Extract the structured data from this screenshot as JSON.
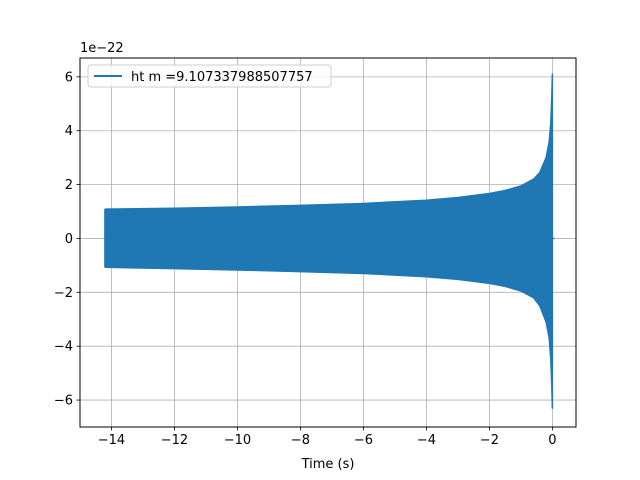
{
  "chart_data": {
    "type": "line",
    "title": "",
    "xlabel": "Time (s)",
    "ylabel": "",
    "y_offset_label": "1e−22",
    "xlim": [
      -15.0,
      0.75
    ],
    "ylim": [
      -7.0,
      6.7
    ],
    "xticks": [
      -14,
      -12,
      -10,
      -8,
      -6,
      -4,
      -2,
      0
    ],
    "xtick_labels": [
      "−14",
      "−12",
      "−10",
      "−8",
      "−6",
      "−4",
      "−2",
      "0"
    ],
    "yticks": [
      -6,
      -4,
      -2,
      0,
      2,
      4,
      6
    ],
    "ytick_labels": [
      "−6",
      "−4",
      "−2",
      "0",
      "2",
      "4",
      "6"
    ],
    "grid": true,
    "legend_position": "top-left",
    "series": [
      {
        "name": "ht m =9.107337988507757",
        "color": "#1f77b4",
        "envelope": {
          "t": [
            -14.2,
            -12,
            -10,
            -8,
            -6,
            -4,
            -3,
            -2,
            -1.5,
            -1,
            -0.6,
            -0.4,
            -0.2,
            -0.1,
            -0.05,
            -0.02,
            0.0
          ],
          "upper": [
            1.09,
            1.12,
            1.17,
            1.23,
            1.3,
            1.42,
            1.52,
            1.67,
            1.78,
            1.95,
            2.2,
            2.45,
            3.0,
            3.6,
            4.3,
            5.2,
            6.1
          ],
          "lower": [
            -1.07,
            -1.12,
            -1.17,
            -1.23,
            -1.3,
            -1.42,
            -1.52,
            -1.67,
            -1.78,
            -1.95,
            -2.2,
            -2.5,
            -3.1,
            -3.7,
            -4.5,
            -5.4,
            -6.3
          ]
        }
      }
    ]
  }
}
